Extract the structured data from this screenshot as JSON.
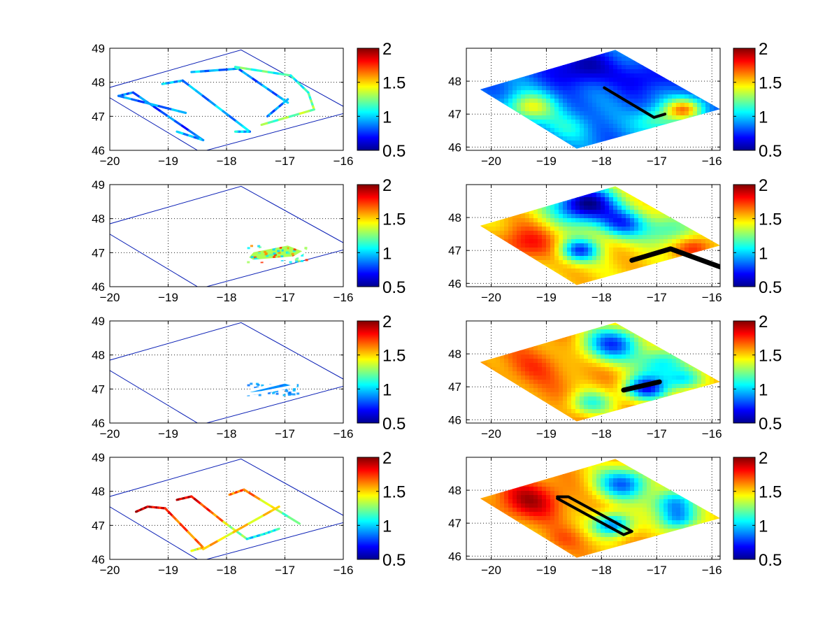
{
  "figure": {
    "background": "#ffffff"
  },
  "colormap": {
    "name": "jet",
    "range": [
      0.5,
      2
    ]
  },
  "colorbar": {
    "ticks": [
      "0.5",
      "1",
      "1.5",
      "2"
    ],
    "tick_values": [
      0.5,
      1,
      1.5,
      2
    ]
  },
  "domain_outline": {
    "lonlat": [
      [
        -20.2,
        47.75
      ],
      [
        -17.75,
        48.95
      ],
      [
        -15.85,
        47.15
      ],
      [
        -18.45,
        45.95
      ]
    ],
    "color": "#0a1fb5"
  },
  "chart_data": [
    {
      "panel": "left-1",
      "type": "scatter",
      "xlim": [
        -20,
        -16
      ],
      "ylim": [
        46,
        49
      ],
      "xticks": [
        "−20",
        "−19",
        "−18",
        "−17",
        "−16"
      ],
      "yticks": [
        "46",
        "47",
        "48",
        "49"
      ],
      "grid": true,
      "tracks": [
        {
          "points": [
            [
              -19.85,
              47.6
            ],
            [
              -19.6,
              47.7
            ],
            [
              -18.4,
              46.3
            ]
          ],
          "values": [
            0.9,
            0.85,
            0.8
          ]
        },
        {
          "points": [
            [
              -18.4,
              46.3
            ],
            [
              -18.85,
              46.55
            ]
          ],
          "values": [
            0.9,
            0.95
          ]
        },
        {
          "points": [
            [
              -19.85,
              47.6
            ],
            [
              -18.7,
              47.1
            ]
          ],
          "values": [
            0.85,
            0.9
          ]
        },
        {
          "points": [
            [
              -19.1,
              47.95
            ],
            [
              -18.75,
              48.05
            ],
            [
              -17.6,
              46.55
            ],
            [
              -17.85,
              46.55
            ]
          ],
          "values": [
            1.0,
            0.9,
            0.95,
            1.0
          ]
        },
        {
          "points": [
            [
              -18.6,
              48.3
            ],
            [
              -17.8,
              48.4
            ],
            [
              -16.95,
              47.4
            ]
          ],
          "values": [
            0.95,
            0.85,
            0.9
          ]
        },
        {
          "points": [
            [
              -17.8,
              48.4
            ],
            [
              -17.85,
              48.45
            ],
            [
              -16.9,
              48.2
            ]
          ],
          "values": [
            1.15,
            1.2,
            1.1
          ]
        },
        {
          "points": [
            [
              -16.9,
              48.2
            ],
            [
              -16.6,
              47.7
            ],
            [
              -16.5,
              47.2
            ],
            [
              -17.4,
              46.75
            ]
          ],
          "values": [
            1.05,
            1.1,
            1.3,
            1.2
          ]
        },
        {
          "points": [
            [
              -17.3,
              47.0
            ],
            [
              -16.95,
              47.5
            ]
          ],
          "values": [
            0.85,
            0.9
          ]
        }
      ]
    },
    {
      "panel": "left-2",
      "type": "scatter",
      "xlim": [
        -20,
        -16
      ],
      "ylim": [
        46,
        49
      ],
      "xticks": [
        "−20",
        "−19",
        "−18",
        "−17",
        "−16"
      ],
      "yticks": [
        "46",
        "47",
        "48",
        "49"
      ],
      "grid": true,
      "patch": {
        "polygon": [
          [
            -17.65,
            46.85
          ],
          [
            -17.55,
            47.05
          ],
          [
            -16.95,
            47.25
          ],
          [
            -16.65,
            47.05
          ],
          [
            -16.85,
            46.85
          ],
          [
            -17.55,
            46.75
          ]
        ],
        "values": [
          1.3,
          1.05,
          1.6,
          1.75,
          1.2,
          1.0
        ]
      }
    },
    {
      "panel": "left-3",
      "type": "scatter",
      "xlim": [
        -20,
        -16
      ],
      "ylim": [
        46,
        49
      ],
      "xticks": [
        "−20",
        "−19",
        "−18",
        "−17",
        "−16"
      ],
      "yticks": [
        "46",
        "47",
        "48",
        "49"
      ],
      "grid": true,
      "patch": {
        "polygon": [
          [
            -17.65,
            46.85
          ],
          [
            -17.6,
            46.95
          ],
          [
            -17.0,
            47.2
          ],
          [
            -16.8,
            47.1
          ],
          [
            -17.4,
            46.9
          ]
        ],
        "values": [
          0.9,
          0.95,
          0.9,
          0.85,
          0.9
        ]
      }
    },
    {
      "panel": "left-4",
      "type": "scatter",
      "xlim": [
        -20,
        -16
      ],
      "ylim": [
        46,
        49
      ],
      "xticks": [
        "−20",
        "−19",
        "−18",
        "−17",
        "−16"
      ],
      "yticks": [
        "46",
        "47",
        "48",
        "49"
      ],
      "grid": true,
      "tracks": [
        {
          "points": [
            [
              -19.55,
              47.4
            ],
            [
              -19.35,
              47.55
            ],
            [
              -19.05,
              47.5
            ]
          ],
          "values": [
            1.95,
            1.9,
            1.8
          ]
        },
        {
          "points": [
            [
              -19.05,
              47.5
            ],
            [
              -18.4,
              46.35
            ],
            [
              -18.6,
              46.25
            ]
          ],
          "values": [
            1.75,
            1.6,
            1.3
          ]
        },
        {
          "points": [
            [
              -18.85,
              47.75
            ],
            [
              -18.6,
              47.85
            ],
            [
              -18.05,
              47.1
            ]
          ],
          "values": [
            1.9,
            1.85,
            1.6
          ]
        },
        {
          "points": [
            [
              -18.05,
              47.1
            ],
            [
              -17.65,
              46.6
            ]
          ],
          "values": [
            1.4,
            1.2
          ]
        },
        {
          "points": [
            [
              -17.95,
              47.9
            ],
            [
              -17.7,
              48.05
            ],
            [
              -16.75,
              47.05
            ]
          ],
          "values": [
            1.6,
            1.7,
            1.1
          ]
        },
        {
          "points": [
            [
              -18.4,
              46.3
            ],
            [
              -17.1,
              47.55
            ]
          ],
          "values": [
            1.5,
            1.45
          ]
        },
        {
          "points": [
            [
              -17.65,
              46.6
            ],
            [
              -17.35,
              46.75
            ],
            [
              -17.1,
              46.9
            ]
          ],
          "values": [
            1.0,
            1.05,
            1.1
          ]
        }
      ]
    },
    {
      "panel": "right-1",
      "type": "heatmap",
      "xlim": [
        -20.45,
        -15.85
      ],
      "ylim": [
        45.9,
        49
      ],
      "xticks": [
        "−20",
        "−19",
        "−18",
        "−17",
        "−16"
      ],
      "yticks": [
        "46",
        "47",
        "48"
      ],
      "grid": true,
      "field": {
        "base": 0.85,
        "blobs": [
          [
            -18.4,
            48.4,
            0.55,
            -0.3
          ],
          [
            -17.2,
            48.1,
            0.5,
            -0.2
          ],
          [
            -19.3,
            47.2,
            0.45,
            0.55
          ],
          [
            -16.5,
            47.15,
            0.35,
            0.7
          ],
          [
            -18.6,
            46.6,
            0.45,
            0.2
          ],
          [
            -17.0,
            46.8,
            0.4,
            0.35
          ],
          [
            -19.5,
            48.0,
            0.4,
            0.0
          ]
        ]
      },
      "track": {
        "points": [
          [
            -17.95,
            47.8
          ],
          [
            -17.05,
            46.9
          ],
          [
            -16.85,
            47.0
          ]
        ],
        "color": "#000000"
      }
    },
    {
      "panel": "right-2",
      "type": "heatmap",
      "xlim": [
        -20.45,
        -15.85
      ],
      "ylim": [
        45.9,
        49
      ],
      "xticks": [
        "−20",
        "−19",
        "−18",
        "−17",
        "−16"
      ],
      "yticks": [
        "46",
        "47",
        "48"
      ],
      "grid": true,
      "field": {
        "base": 1.5,
        "blobs": [
          [
            -18.3,
            48.4,
            0.6,
            -1.0
          ],
          [
            -17.6,
            47.8,
            0.45,
            -0.6
          ],
          [
            -18.4,
            47.0,
            0.35,
            -0.7
          ],
          [
            -16.8,
            47.6,
            0.45,
            -0.35
          ],
          [
            -16.3,
            47.1,
            0.35,
            0.25
          ],
          [
            -19.4,
            47.2,
            0.55,
            0.3
          ]
        ]
      },
      "track": {
        "points": [
          [
            -17.45,
            46.7
          ],
          [
            -16.75,
            47.05
          ],
          [
            -15.85,
            46.5
          ]
        ],
        "color": "#000000",
        "thick": true
      }
    },
    {
      "panel": "right-3",
      "type": "heatmap",
      "xlim": [
        -20.45,
        -15.85
      ],
      "ylim": [
        45.9,
        49
      ],
      "xticks": [
        "−20",
        "−19",
        "−18",
        "−17",
        "−16"
      ],
      "yticks": [
        "46",
        "47",
        "48"
      ],
      "grid": true,
      "field": {
        "base": 1.6,
        "blobs": [
          [
            -17.8,
            48.3,
            0.55,
            -0.8
          ],
          [
            -16.9,
            47.7,
            0.45,
            -0.55
          ],
          [
            -17.2,
            46.95,
            0.4,
            -0.85
          ],
          [
            -16.5,
            47.2,
            0.35,
            -0.5
          ],
          [
            -18.2,
            46.5,
            0.4,
            -0.45
          ],
          [
            -19.2,
            47.6,
            0.5,
            0.1
          ]
        ]
      },
      "track": {
        "points": [
          [
            -17.6,
            46.9
          ],
          [
            -16.95,
            47.15
          ]
        ],
        "color": "#000000",
        "thick": true
      }
    },
    {
      "panel": "right-4",
      "type": "heatmap",
      "xlim": [
        -20.45,
        -15.85
      ],
      "ylim": [
        45.9,
        49
      ],
      "xticks": [
        "−20",
        "−19",
        "−18",
        "−17",
        "−16"
      ],
      "yticks": [
        "46",
        "47",
        "48"
      ],
      "grid": true,
      "field": {
        "base": 1.55,
        "blobs": [
          [
            -17.6,
            48.2,
            0.5,
            -0.7
          ],
          [
            -16.7,
            47.6,
            0.4,
            -0.6
          ],
          [
            -17.8,
            46.95,
            0.35,
            -0.7
          ],
          [
            -16.6,
            47.1,
            0.35,
            -0.55
          ],
          [
            -19.3,
            47.7,
            0.6,
            0.35
          ],
          [
            -18.7,
            46.5,
            0.35,
            0.1
          ]
        ]
      },
      "track": {
        "points": [
          [
            -18.8,
            47.8
          ],
          [
            -18.6,
            47.8
          ],
          [
            -17.45,
            46.75
          ],
          [
            -17.6,
            46.65
          ],
          [
            -18.8,
            47.75
          ]
        ],
        "color": "#000000"
      }
    }
  ]
}
